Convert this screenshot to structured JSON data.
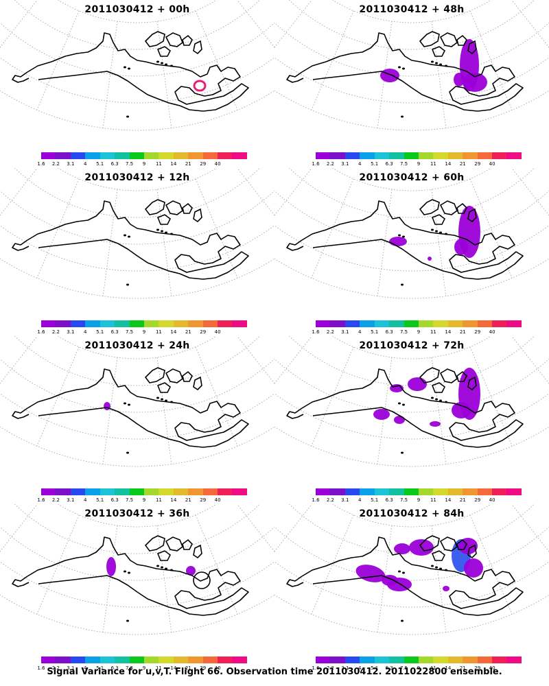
{
  "panels": [
    {
      "title": "2011030412 + 00h"
    },
    {
      "title": "2011030412 + 48h"
    },
    {
      "title": "2011030412 + 12h"
    },
    {
      "title": "2011030412 + 60h"
    },
    {
      "title": "2011030412 + 24h"
    },
    {
      "title": "2011030412 + 72h"
    },
    {
      "title": "2011030412 + 36h"
    },
    {
      "title": "2011030412 + 84h"
    }
  ],
  "colorbar": {
    "colors": [
      "#9b00d9",
      "#7c10c8",
      "#2849ef",
      "#0aa1e8",
      "#1cc3d8",
      "#13c1a2",
      "#0ac81c",
      "#a4d82a",
      "#d4d82c",
      "#e6b82c",
      "#ef9630",
      "#f4683a",
      "#f01f55",
      "#ed0c83"
    ],
    "labels": [
      "1.6",
      "2.2",
      "3.1",
      "4",
      "5.1",
      "6.3",
      "7.5",
      "9",
      "11",
      "14",
      "21",
      "29",
      "40"
    ]
  },
  "caption": "Signal Variance for u,v,T. Flight 66. Observation time 2011030412. 2011022800 ensemble."
}
